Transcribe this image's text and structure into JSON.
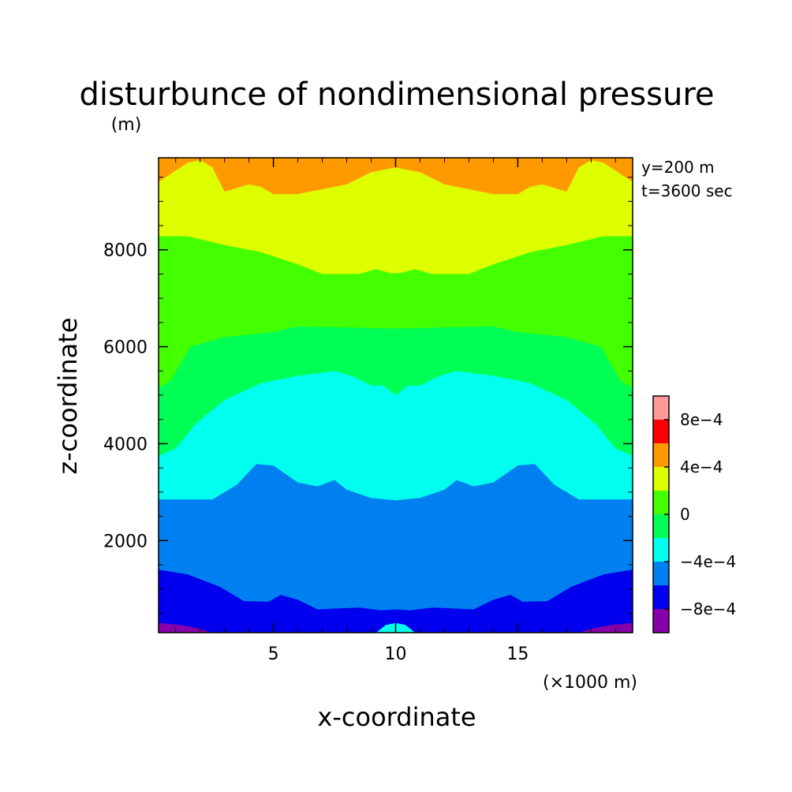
{
  "chart_data": {
    "type": "contour",
    "title": "disturbunce of nondimensional pressure",
    "ylabel": "z-coordinate",
    "yunit": "(m)",
    "xlabel": "x-coordinate",
    "xunit": "(×1000 m)",
    "annotations": [
      "y=200 m",
      "t=3600 sec"
    ],
    "xlim": [
      0.3,
      19.7
    ],
    "ylim": [
      100,
      9900
    ],
    "xticks": [
      5,
      10,
      15
    ],
    "yticks": [
      2000,
      4000,
      6000,
      8000
    ],
    "xminor": [
      1,
      2,
      3,
      4,
      6,
      7,
      8,
      9,
      11,
      12,
      13,
      14,
      16,
      17,
      18,
      19
    ],
    "yminor": [
      500,
      1000,
      1500,
      2500,
      3000,
      3500,
      4500,
      5000,
      5500,
      6500,
      7000,
      7500,
      8500,
      9000,
      9500
    ],
    "levels": [
      {
        "min": -0.001,
        "max": -0.0008,
        "color": "#8800aa"
      },
      {
        "min": -0.0008,
        "max": -0.0006,
        "color": "#0000ee"
      },
      {
        "min": -0.0006,
        "max": -0.0004,
        "color": "#0080f0"
      },
      {
        "min": -0.0004,
        "max": -0.0002,
        "color": "#00ffee"
      },
      {
        "min": -0.0002,
        "max": 0.0,
        "color": "#00ff55"
      },
      {
        "min": 0.0,
        "max": 0.0002,
        "color": "#44ff00"
      },
      {
        "min": 0.0002,
        "max": 0.0004,
        "color": "#ddff00"
      },
      {
        "min": 0.0004,
        "max": 0.0006,
        "color": "#ff9900"
      },
      {
        "min": 0.0006,
        "max": 0.0008,
        "color": "#ff0000"
      },
      {
        "min": 0.0008,
        "max": 0.001,
        "color": "#ff9999"
      }
    ],
    "colorbar_labels": [
      {
        "value": 0.0008,
        "text": "8e−4"
      },
      {
        "value": 0.0004,
        "text": "4e−4"
      },
      {
        "value": 0.0,
        "text": "0"
      },
      {
        "value": -0.0004,
        "text": "−4e−4"
      },
      {
        "value": -0.0008,
        "text": "−8e−4"
      }
    ],
    "boundaries": [
      {
        "level": 1,
        "points": [
          [
            0.3,
            300
          ],
          [
            1.2,
            260
          ],
          [
            2.0,
            180
          ],
          [
            2.5,
            100
          ],
          [
            17.5,
            100
          ],
          [
            18.0,
            180
          ],
          [
            18.8,
            260
          ],
          [
            19.7,
            300
          ]
        ]
      },
      {
        "level": 2,
        "points": [
          [
            0.3,
            1400
          ],
          [
            1.5,
            1300
          ],
          [
            2.8,
            1050
          ],
          [
            3.8,
            750
          ],
          [
            4.8,
            740
          ],
          [
            5.3,
            880
          ],
          [
            6.0,
            780
          ],
          [
            6.8,
            580
          ],
          [
            8.5,
            620
          ],
          [
            9.4,
            560
          ],
          [
            10.0,
            580
          ],
          [
            10.6,
            560
          ],
          [
            11.5,
            620
          ],
          [
            13.2,
            580
          ],
          [
            14.0,
            780
          ],
          [
            14.7,
            880
          ],
          [
            15.2,
            740
          ],
          [
            16.2,
            750
          ],
          [
            17.2,
            1050
          ],
          [
            18.5,
            1300
          ],
          [
            19.7,
            1400
          ]
        ]
      },
      {
        "level": 3,
        "points": [
          [
            0.3,
            2850
          ],
          [
            2.5,
            2850
          ],
          [
            3.5,
            3150
          ],
          [
            4.3,
            3580
          ],
          [
            5.0,
            3550
          ],
          [
            6.0,
            3200
          ],
          [
            6.8,
            3120
          ],
          [
            7.5,
            3250
          ],
          [
            8.0,
            3050
          ],
          [
            9.0,
            2880
          ],
          [
            10.0,
            2830
          ],
          [
            11.0,
            2880
          ],
          [
            12.0,
            3050
          ],
          [
            12.5,
            3250
          ],
          [
            13.2,
            3120
          ],
          [
            14.0,
            3200
          ],
          [
            15.0,
            3550
          ],
          [
            15.7,
            3580
          ],
          [
            16.5,
            3150
          ],
          [
            17.5,
            2850
          ],
          [
            19.7,
            2850
          ]
        ]
      },
      {
        "level": 4,
        "points": [
          [
            0.3,
            3750
          ],
          [
            1.0,
            3900
          ],
          [
            1.8,
            4400
          ],
          [
            3.0,
            4900
          ],
          [
            4.5,
            5250
          ],
          [
            6.0,
            5400
          ],
          [
            7.5,
            5500
          ],
          [
            8.2,
            5400
          ],
          [
            9.0,
            5200
          ],
          [
            9.5,
            5200
          ],
          [
            10.0,
            5000
          ],
          [
            10.5,
            5200
          ],
          [
            11.0,
            5200
          ],
          [
            11.8,
            5400
          ],
          [
            12.5,
            5500
          ],
          [
            14.0,
            5400
          ],
          [
            15.5,
            5250
          ],
          [
            17.0,
            4900
          ],
          [
            18.2,
            4400
          ],
          [
            19.0,
            3900
          ],
          [
            19.7,
            3750
          ]
        ]
      },
      {
        "level": 5,
        "points": [
          [
            0.3,
            5150
          ],
          [
            0.8,
            5300
          ],
          [
            1.6,
            6000
          ],
          [
            3.0,
            6200
          ],
          [
            5.0,
            6300
          ],
          [
            6.0,
            6420
          ],
          [
            8.0,
            6400
          ],
          [
            9.5,
            6380
          ],
          [
            10.5,
            6380
          ],
          [
            12.0,
            6400
          ],
          [
            14.0,
            6420
          ],
          [
            15.0,
            6300
          ],
          [
            17.0,
            6200
          ],
          [
            18.4,
            6000
          ],
          [
            19.2,
            5300
          ],
          [
            19.7,
            5150
          ]
        ]
      },
      {
        "level": 6,
        "points": [
          [
            0.3,
            8280
          ],
          [
            1.5,
            8280
          ],
          [
            3.0,
            8100
          ],
          [
            4.5,
            7950
          ],
          [
            6.0,
            7700
          ],
          [
            7.0,
            7500
          ],
          [
            8.5,
            7500
          ],
          [
            9.2,
            7600
          ],
          [
            9.8,
            7520
          ],
          [
            10.2,
            7520
          ],
          [
            10.8,
            7600
          ],
          [
            11.5,
            7500
          ],
          [
            13.0,
            7500
          ],
          [
            14.0,
            7700
          ],
          [
            15.5,
            7950
          ],
          [
            17.0,
            8100
          ],
          [
            18.5,
            8280
          ],
          [
            19.7,
            8280
          ]
        ]
      },
      {
        "level": 7,
        "points": [
          [
            0.3,
            9400
          ],
          [
            1.5,
            9800
          ],
          [
            2.0,
            9850
          ],
          [
            2.5,
            9700
          ],
          [
            3.0,
            9200
          ],
          [
            4.0,
            9350
          ],
          [
            4.5,
            9300
          ],
          [
            5.0,
            9150
          ],
          [
            6.0,
            9150
          ],
          [
            7.0,
            9250
          ],
          [
            8.0,
            9350
          ],
          [
            9.0,
            9600
          ],
          [
            10.0,
            9700
          ],
          [
            11.0,
            9600
          ],
          [
            12.0,
            9350
          ],
          [
            13.0,
            9250
          ],
          [
            14.0,
            9150
          ],
          [
            15.0,
            9150
          ],
          [
            15.5,
            9300
          ],
          [
            16.0,
            9350
          ],
          [
            17.0,
            9200
          ],
          [
            17.5,
            9700
          ],
          [
            18.0,
            9850
          ],
          [
            18.5,
            9800
          ],
          [
            19.7,
            9400
          ]
        ]
      }
    ],
    "islands": [
      {
        "level": 3,
        "points": [
          [
            9.2,
            100
          ],
          [
            9.6,
            260
          ],
          [
            10.0,
            300
          ],
          [
            10.4,
            260
          ],
          [
            10.8,
            100
          ]
        ]
      }
    ]
  }
}
